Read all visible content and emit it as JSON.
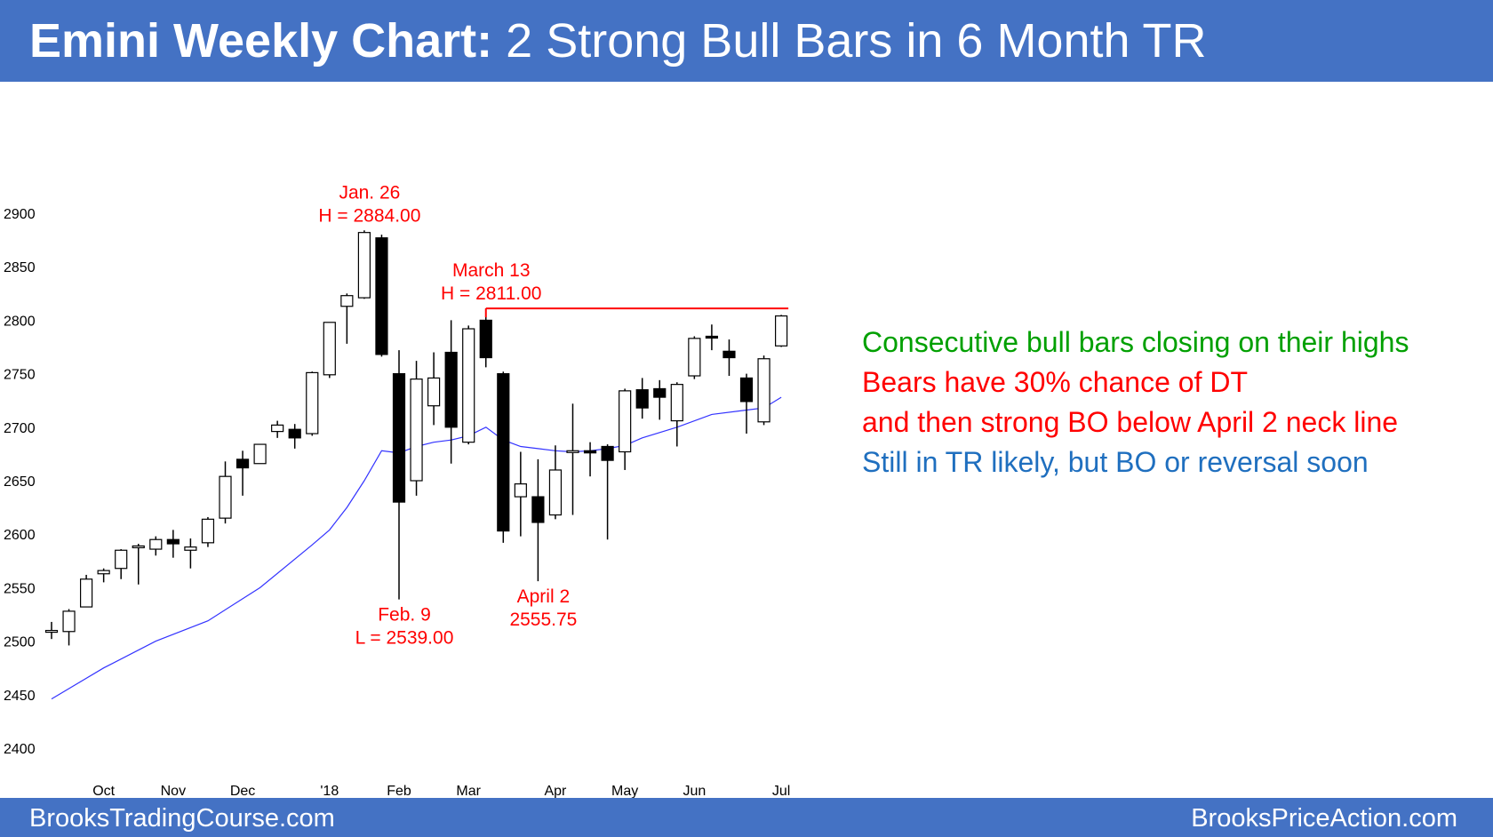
{
  "header": {
    "title_bold": "Emini Weekly Chart:",
    "title_rest": " 2 Strong Bull Bars in 6 Month TR"
  },
  "footer": {
    "left": "BrooksTradingCourse.com",
    "right": "BrooksPriceAction.com"
  },
  "colors": {
    "banner": "#4472c4",
    "annotation_red": "#ff0000",
    "green": "#00a000",
    "blue": "#1f6fbf",
    "moving_average": "#3333ff"
  },
  "commentary": [
    {
      "text": "Consecutive bull bars closing on their highs",
      "color": "#00a000"
    },
    {
      "text": "Bears have 30% chance of DT",
      "color": "#ff0000"
    },
    {
      "text": "and then strong BO below April 2 neck line",
      "color": "#ff0000"
    },
    {
      "text": "Still in TR likely, but BO or reversal soon",
      "color": "#1f6fbf"
    }
  ],
  "chart_data": {
    "type": "candlestick",
    "title": "Emini Weekly Chart: 2 Strong Bull Bars in 6 Month TR",
    "ylim": [
      2400,
      2900
    ],
    "yticks": [
      2400,
      2450,
      2500,
      2550,
      2600,
      2650,
      2700,
      2750,
      2800,
      2850,
      2900
    ],
    "xticks": [
      {
        "label": "Oct",
        "bar": 3
      },
      {
        "label": "Nov",
        "bar": 7
      },
      {
        "label": "Dec",
        "bar": 11
      },
      {
        "label": "'18",
        "bar": 16
      },
      {
        "label": "Feb",
        "bar": 20
      },
      {
        "label": "Mar",
        "bar": 24
      },
      {
        "label": "Apr",
        "bar": 29
      },
      {
        "label": "May",
        "bar": 33
      },
      {
        "label": "Jun",
        "bar": 37
      },
      {
        "label": "Jul",
        "bar": 42
      }
    ],
    "bars": [
      {
        "o": 2510,
        "h": 2518,
        "l": 2502,
        "c": 2510
      },
      {
        "o": 2509,
        "h": 2530,
        "l": 2496,
        "c": 2528
      },
      {
        "o": 2532,
        "h": 2562,
        "l": 2532,
        "c": 2558
      },
      {
        "o": 2563,
        "h": 2568,
        "l": 2555,
        "c": 2566
      },
      {
        "o": 2568,
        "h": 2586,
        "l": 2558,
        "c": 2585
      },
      {
        "o": 2589,
        "h": 2591,
        "l": 2553,
        "c": 2589
      },
      {
        "o": 2586,
        "h": 2598,
        "l": 2580,
        "c": 2595
      },
      {
        "o": 2595,
        "h": 2604,
        "l": 2578,
        "c": 2591
      },
      {
        "o": 2585,
        "h": 2596,
        "l": 2568,
        "c": 2588
      },
      {
        "o": 2592,
        "h": 2616,
        "l": 2588,
        "c": 2614
      },
      {
        "o": 2615,
        "h": 2668,
        "l": 2610,
        "c": 2654
      },
      {
        "o": 2670,
        "h": 2678,
        "l": 2636,
        "c": 2662
      },
      {
        "o": 2666,
        "h": 2684,
        "l": 2666,
        "c": 2684
      },
      {
        "o": 2696,
        "h": 2706,
        "l": 2690,
        "c": 2702
      },
      {
        "o": 2698,
        "h": 2703,
        "l": 2680,
        "c": 2690
      },
      {
        "o": 2694,
        "h": 2752,
        "l": 2692,
        "c": 2751
      },
      {
        "o": 2749,
        "h": 2798,
        "l": 2746,
        "c": 2798
      },
      {
        "o": 2813,
        "h": 2825,
        "l": 2778,
        "c": 2823
      },
      {
        "o": 2821,
        "h": 2884,
        "l": 2820,
        "c": 2882
      },
      {
        "o": 2877,
        "h": 2880,
        "l": 2766,
        "c": 2768
      },
      {
        "o": 2750,
        "h": 2772,
        "l": 2539,
        "c": 2630
      },
      {
        "o": 2650,
        "h": 2762,
        "l": 2636,
        "c": 2745
      },
      {
        "o": 2720,
        "h": 2770,
        "l": 2702,
        "c": 2746
      },
      {
        "o": 2770,
        "h": 2800,
        "l": 2666,
        "c": 2700
      },
      {
        "o": 2686,
        "h": 2795,
        "l": 2684,
        "c": 2792
      },
      {
        "o": 2800,
        "h": 2811,
        "l": 2756,
        "c": 2765
      },
      {
        "o": 2750,
        "h": 2752,
        "l": 2592,
        "c": 2603
      },
      {
        "o": 2635,
        "h": 2677,
        "l": 2598,
        "c": 2647
      },
      {
        "o": 2635,
        "h": 2670,
        "l": 2556,
        "c": 2611
      },
      {
        "o": 2618,
        "h": 2683,
        "l": 2614,
        "c": 2660
      },
      {
        "o": 2678,
        "h": 2722,
        "l": 2618,
        "c": 2678
      },
      {
        "o": 2678,
        "h": 2686,
        "l": 2654,
        "c": 2676
      },
      {
        "o": 2682,
        "h": 2684,
        "l": 2595,
        "c": 2669
      },
      {
        "o": 2677,
        "h": 2736,
        "l": 2660,
        "c": 2734
      },
      {
        "o": 2735,
        "h": 2746,
        "l": 2708,
        "c": 2718
      },
      {
        "o": 2736,
        "h": 2744,
        "l": 2707,
        "c": 2728
      },
      {
        "o": 2706,
        "h": 2742,
        "l": 2682,
        "c": 2740
      },
      {
        "o": 2748,
        "h": 2785,
        "l": 2745,
        "c": 2783
      },
      {
        "o": 2785,
        "h": 2796,
        "l": 2772,
        "c": 2784
      },
      {
        "o": 2771,
        "h": 2782,
        "l": 2748,
        "c": 2765
      },
      {
        "o": 2746,
        "h": 2750,
        "l": 2694,
        "c": 2724
      },
      {
        "o": 2705,
        "h": 2767,
        "l": 2702,
        "c": 2764
      },
      {
        "o": 2776,
        "h": 2805,
        "l": 2775,
        "c": 2804
      }
    ],
    "moving_average": [
      [
        0,
        2446
      ],
      [
        3,
        2475
      ],
      [
        6,
        2500
      ],
      [
        9,
        2519
      ],
      [
        12,
        2550
      ],
      [
        15,
        2590
      ],
      [
        16,
        2604
      ],
      [
        17,
        2625
      ],
      [
        18,
        2650
      ],
      [
        19,
        2678
      ],
      [
        20,
        2676
      ],
      [
        21,
        2682
      ],
      [
        22,
        2686
      ],
      [
        23,
        2688
      ],
      [
        24,
        2692
      ],
      [
        25,
        2700
      ],
      [
        26,
        2688
      ],
      [
        27,
        2682
      ],
      [
        28,
        2680
      ],
      [
        29,
        2678
      ],
      [
        30,
        2677
      ],
      [
        31,
        2678
      ],
      [
        32,
        2680
      ],
      [
        33,
        2683
      ],
      [
        34,
        2690
      ],
      [
        36,
        2700
      ],
      [
        38,
        2712
      ],
      [
        40,
        2716
      ],
      [
        41,
        2718
      ],
      [
        42,
        2728
      ]
    ],
    "high_line": {
      "value": 2811,
      "from_bar": 25,
      "to_bar": 42
    },
    "annotations": [
      {
        "lines": [
          "Jan. 26",
          "H = 2884.00"
        ],
        "bar": 18,
        "value": 2884,
        "side": "above"
      },
      {
        "lines": [
          "March 13",
          "H = 2811.00"
        ],
        "bar": 25,
        "value": 2811,
        "side": "above"
      },
      {
        "lines": [
          "Feb. 9",
          "L = 2539.00"
        ],
        "bar": 20,
        "value": 2539,
        "side": "below"
      },
      {
        "lines": [
          "April 2",
          "2555.75"
        ],
        "bar": 28,
        "value": 2556,
        "side": "below"
      }
    ]
  }
}
